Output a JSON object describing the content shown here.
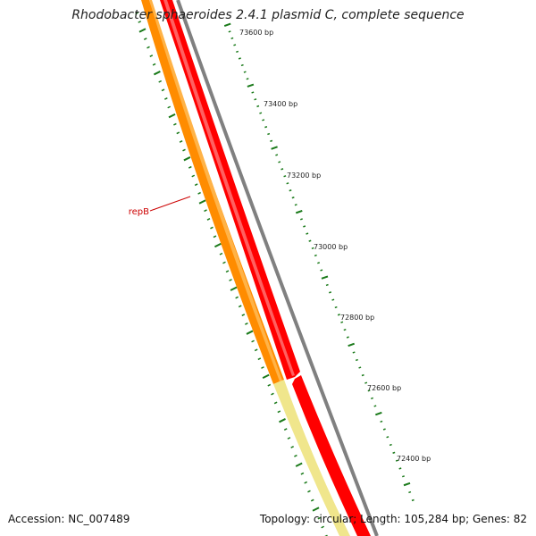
{
  "title": "Rhodobacter sphaeroides 2.4.1 plasmid C, complete sequence",
  "accession": "Accession: NC_007489",
  "summary": "Topology: circular; Length: 105,284 bp; Genes: 82",
  "scale_labels": [
    "73600 bp",
    "73400 bp",
    "73200 bp",
    "73000 bp",
    "72800 bp",
    "72600 bp",
    "72400 bp"
  ],
  "gene_labels": [
    "repB"
  ],
  "colors": {
    "forward_gene": "#ff0000",
    "reverse_gene": "#ff8c00",
    "reverse_gene_highlight": "#ffb347",
    "pale_gene": "#f0e68c",
    "backbone": "#808080",
    "ticks": "#1a7a1a",
    "label_line": "#cc0000"
  }
}
